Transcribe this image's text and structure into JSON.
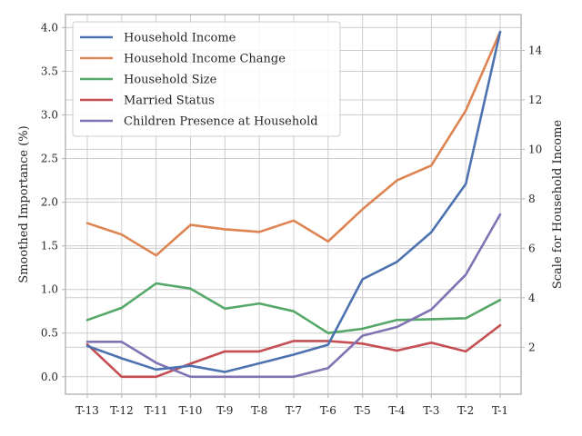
{
  "chart_data": {
    "type": "line",
    "categories": [
      "T-13",
      "T-12",
      "T-11",
      "T-10",
      "T-9",
      "T-8",
      "T-7",
      "T-6",
      "T-5",
      "T-4",
      "T-3",
      "T-2",
      "T-1"
    ],
    "ylabel": "Smoothed Importance (%)",
    "y2label": "Scale for Household Income",
    "ylim": [
      -0.2,
      4.15
    ],
    "y2lim": [
      0.1,
      15.45
    ],
    "yticks": [
      "0.0",
      "0.5",
      "1.0",
      "1.5",
      "2.0",
      "2.5",
      "3.0",
      "3.5",
      "4.0"
    ],
    "y2ticks": [
      "2",
      "4",
      "6",
      "8",
      "10",
      "12",
      "14"
    ],
    "grid": true,
    "legend_position": "top-left",
    "series": [
      {
        "name": "Household Income",
        "axis": "right",
        "color": "#4c72b0",
        "values": [
          2.05,
          1.55,
          1.1,
          1.25,
          1.0,
          1.35,
          1.7,
          2.1,
          4.75,
          5.45,
          6.65,
          8.6,
          14.75
        ]
      },
      {
        "name": "Household Income Change",
        "axis": "left",
        "color": "#dd8452",
        "values": [
          1.76,
          1.63,
          1.39,
          1.74,
          1.69,
          1.66,
          1.79,
          1.55,
          1.92,
          2.25,
          2.42,
          3.05,
          3.95
        ]
      },
      {
        "name": "Household Size",
        "axis": "left",
        "color": "#55a868",
        "values": [
          0.65,
          0.79,
          1.07,
          1.01,
          0.78,
          0.84,
          0.75,
          0.5,
          0.55,
          0.65,
          0.66,
          0.67,
          0.88
        ]
      },
      {
        "name": "Married Status",
        "axis": "left",
        "color": "#c44e52",
        "values": [
          0.37,
          0.0,
          0.0,
          0.15,
          0.29,
          0.29,
          0.41,
          0.41,
          0.38,
          0.3,
          0.39,
          0.29,
          0.59
        ]
      },
      {
        "name": "Children Presence at Household",
        "axis": "left",
        "color": "#8172b3",
        "values": [
          0.4,
          0.4,
          0.16,
          0.0,
          0.0,
          0.0,
          0.0,
          0.1,
          0.47,
          0.57,
          0.77,
          1.17,
          1.86
        ]
      }
    ]
  }
}
